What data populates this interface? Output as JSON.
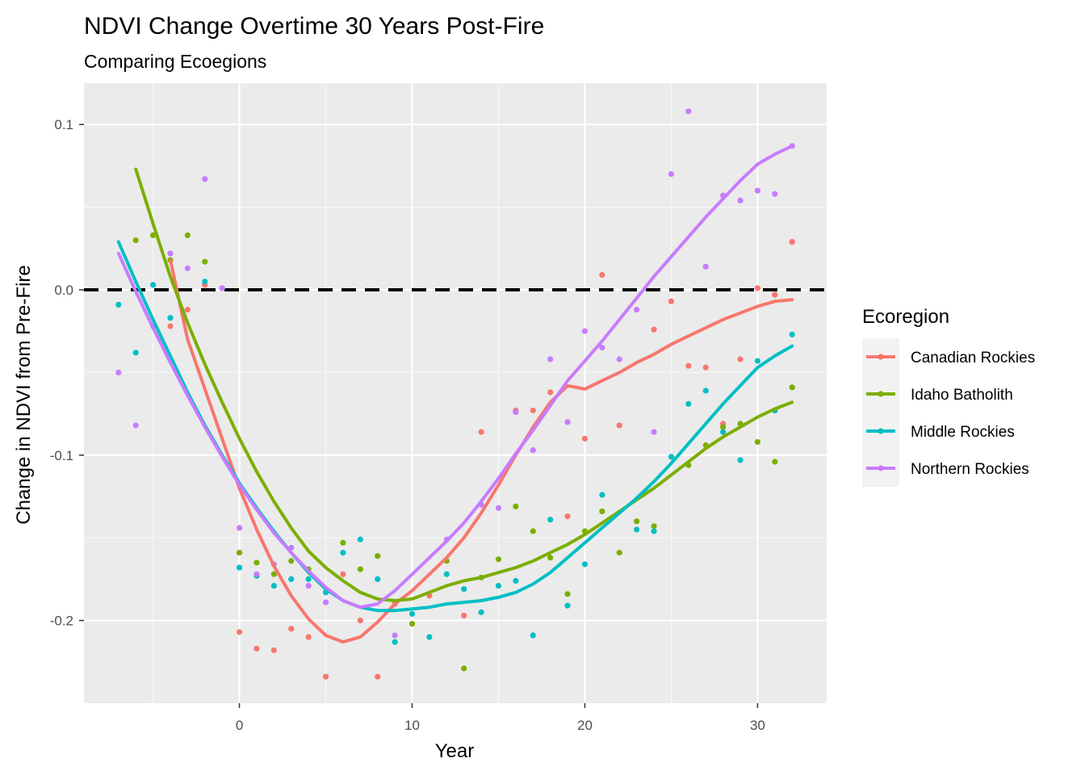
{
  "chart_data": {
    "type": "scatter",
    "title": "NDVI Change Overtime 30 Years Post-Fire",
    "subtitle": "Comparing Ecoegions",
    "xlabel": "Year",
    "ylabel": "Change in NDVI from Pre-Fire",
    "xlim": [
      -9,
      34
    ],
    "ylim": [
      -0.25,
      0.125
    ],
    "x_ticks": [
      0,
      10,
      20,
      30
    ],
    "x_tick_labels": [
      "0",
      "10",
      "20",
      "30"
    ],
    "y_ticks": [
      0.1,
      0.0,
      -0.1,
      -0.2
    ],
    "y_tick_labels": [
      "0.1",
      "0.0",
      "-0.1",
      "-0.2"
    ],
    "reference_line": {
      "y": 0.0,
      "style": "dashed",
      "color": "#000000"
    },
    "grid": true,
    "panel_background": "#ebebeb",
    "legend": {
      "title": "Ecoregion",
      "position": "right"
    },
    "series": [
      {
        "name": "Canadian Rockies",
        "color": "#F8766D",
        "points": [
          [
            -4,
            -0.022
          ],
          [
            -3,
            -0.012
          ],
          [
            -2,
            0.003
          ],
          [
            -1,
            0.001
          ],
          [
            0,
            -0.207
          ],
          [
            1,
            -0.217
          ],
          [
            2,
            -0.218
          ],
          [
            3,
            -0.205
          ],
          [
            4,
            -0.21
          ],
          [
            5,
            -0.234
          ],
          [
            6,
            -0.172
          ],
          [
            7,
            -0.2
          ],
          [
            8,
            -0.234
          ],
          [
            9,
            -0.19
          ],
          [
            11,
            -0.185
          ],
          [
            13,
            -0.197
          ],
          [
            14,
            -0.086
          ],
          [
            16,
            -0.073
          ],
          [
            17,
            -0.073
          ],
          [
            18,
            -0.062
          ],
          [
            19,
            -0.137
          ],
          [
            20,
            -0.09
          ],
          [
            21,
            0.009
          ],
          [
            22,
            -0.082
          ],
          [
            24,
            -0.024
          ],
          [
            25,
            -0.007
          ],
          [
            26,
            -0.046
          ],
          [
            27,
            -0.047
          ],
          [
            28,
            -0.081
          ],
          [
            29,
            -0.042
          ],
          [
            30,
            0.001
          ],
          [
            31,
            -0.003
          ],
          [
            32,
            0.029
          ]
        ],
        "smooth": [
          [
            -4,
            0.018
          ],
          [
            -3,
            -0.03
          ],
          [
            -2,
            -0.06
          ],
          [
            -1,
            -0.09
          ],
          [
            0,
            -0.12
          ],
          [
            1,
            -0.145
          ],
          [
            2,
            -0.167
          ],
          [
            3,
            -0.185
          ],
          [
            4,
            -0.199
          ],
          [
            5,
            -0.209
          ],
          [
            6,
            -0.213
          ],
          [
            7,
            -0.21
          ],
          [
            8,
            -0.201
          ],
          [
            9,
            -0.19
          ],
          [
            10,
            -0.182
          ],
          [
            11,
            -0.172
          ],
          [
            12,
            -0.162
          ],
          [
            13,
            -0.15
          ],
          [
            14,
            -0.135
          ],
          [
            15,
            -0.118
          ],
          [
            16,
            -0.1
          ],
          [
            17,
            -0.083
          ],
          [
            18,
            -0.068
          ],
          [
            19,
            -0.058
          ],
          [
            20,
            -0.06
          ],
          [
            21,
            -0.055
          ],
          [
            22,
            -0.05
          ],
          [
            23,
            -0.044
          ],
          [
            24,
            -0.039
          ],
          [
            25,
            -0.033
          ],
          [
            26,
            -0.028
          ],
          [
            27,
            -0.023
          ],
          [
            28,
            -0.018
          ],
          [
            29,
            -0.014
          ],
          [
            30,
            -0.01
          ],
          [
            31,
            -0.007
          ],
          [
            32,
            -0.006
          ]
        ]
      },
      {
        "name": "Idaho Batholith",
        "color": "#7CAE00",
        "points": [
          [
            -6,
            0.03
          ],
          [
            -5,
            0.033
          ],
          [
            -4,
            0.018
          ],
          [
            -3,
            0.033
          ],
          [
            -2,
            0.017
          ],
          [
            0,
            -0.159
          ],
          [
            1,
            -0.165
          ],
          [
            2,
            -0.172
          ],
          [
            3,
            -0.164
          ],
          [
            4,
            -0.169
          ],
          [
            6,
            -0.153
          ],
          [
            7,
            -0.169
          ],
          [
            8,
            -0.161
          ],
          [
            10,
            -0.202
          ],
          [
            12,
            -0.164
          ],
          [
            13,
            -0.229
          ],
          [
            14,
            -0.174
          ],
          [
            15,
            -0.163
          ],
          [
            16,
            -0.131
          ],
          [
            17,
            -0.146
          ],
          [
            18,
            -0.162
          ],
          [
            19,
            -0.184
          ],
          [
            20,
            -0.146
          ],
          [
            21,
            -0.134
          ],
          [
            22,
            -0.159
          ],
          [
            23,
            -0.14
          ],
          [
            24,
            -0.143
          ],
          [
            26,
            -0.106
          ],
          [
            27,
            -0.094
          ],
          [
            28,
            -0.083
          ],
          [
            29,
            -0.081
          ],
          [
            30,
            -0.092
          ],
          [
            31,
            -0.104
          ],
          [
            32,
            -0.059
          ]
        ],
        "smooth": [
          [
            -6,
            0.073
          ],
          [
            -5,
            0.04
          ],
          [
            -4,
            0.008
          ],
          [
            -3,
            -0.02
          ],
          [
            -2,
            -0.045
          ],
          [
            -1,
            -0.068
          ],
          [
            0,
            -0.09
          ],
          [
            1,
            -0.11
          ],
          [
            2,
            -0.128
          ],
          [
            3,
            -0.144
          ],
          [
            4,
            -0.158
          ],
          [
            5,
            -0.168
          ],
          [
            6,
            -0.176
          ],
          [
            7,
            -0.183
          ],
          [
            8,
            -0.187
          ],
          [
            9,
            -0.188
          ],
          [
            10,
            -0.187
          ],
          [
            11,
            -0.183
          ],
          [
            12,
            -0.179
          ],
          [
            13,
            -0.176
          ],
          [
            14,
            -0.174
          ],
          [
            15,
            -0.171
          ],
          [
            16,
            -0.168
          ],
          [
            17,
            -0.164
          ],
          [
            18,
            -0.159
          ],
          [
            19,
            -0.154
          ],
          [
            20,
            -0.148
          ],
          [
            21,
            -0.141
          ],
          [
            22,
            -0.134
          ],
          [
            23,
            -0.127
          ],
          [
            24,
            -0.12
          ],
          [
            25,
            -0.112
          ],
          [
            26,
            -0.104
          ],
          [
            27,
            -0.096
          ],
          [
            28,
            -0.089
          ],
          [
            29,
            -0.083
          ],
          [
            30,
            -0.077
          ],
          [
            31,
            -0.072
          ],
          [
            32,
            -0.068
          ]
        ]
      },
      {
        "name": "Middle Rockies",
        "color": "#00BFC4",
        "points": [
          [
            -7,
            -0.009
          ],
          [
            -6,
            -0.038
          ],
          [
            -5,
            0.003
          ],
          [
            -4,
            -0.017
          ],
          [
            -2,
            0.005
          ],
          [
            0,
            -0.168
          ],
          [
            1,
            -0.173
          ],
          [
            2,
            -0.179
          ],
          [
            3,
            -0.175
          ],
          [
            4,
            -0.175
          ],
          [
            5,
            -0.183
          ],
          [
            6,
            -0.159
          ],
          [
            7,
            -0.151
          ],
          [
            8,
            -0.175
          ],
          [
            9,
            -0.213
          ],
          [
            10,
            -0.196
          ],
          [
            11,
            -0.21
          ],
          [
            12,
            -0.172
          ],
          [
            13,
            -0.181
          ],
          [
            14,
            -0.195
          ],
          [
            15,
            -0.179
          ],
          [
            16,
            -0.176
          ],
          [
            17,
            -0.209
          ],
          [
            18,
            -0.139
          ],
          [
            19,
            -0.191
          ],
          [
            20,
            -0.166
          ],
          [
            21,
            -0.124
          ],
          [
            23,
            -0.145
          ],
          [
            24,
            -0.146
          ],
          [
            25,
            -0.101
          ],
          [
            26,
            -0.069
          ],
          [
            27,
            -0.061
          ],
          [
            28,
            -0.086
          ],
          [
            29,
            -0.103
          ],
          [
            30,
            -0.043
          ],
          [
            31,
            -0.073
          ],
          [
            32,
            -0.027
          ]
        ],
        "smooth": [
          [
            -7,
            0.029
          ],
          [
            -6,
            0.005
          ],
          [
            -5,
            -0.018
          ],
          [
            -4,
            -0.04
          ],
          [
            -3,
            -0.062
          ],
          [
            -2,
            -0.082
          ],
          [
            -1,
            -0.1
          ],
          [
            0,
            -0.117
          ],
          [
            1,
            -0.132
          ],
          [
            2,
            -0.146
          ],
          [
            3,
            -0.159
          ],
          [
            4,
            -0.171
          ],
          [
            5,
            -0.181
          ],
          [
            6,
            -0.188
          ],
          [
            7,
            -0.192
          ],
          [
            8,
            -0.194
          ],
          [
            9,
            -0.194
          ],
          [
            10,
            -0.193
          ],
          [
            11,
            -0.192
          ],
          [
            12,
            -0.19
          ],
          [
            13,
            -0.189
          ],
          [
            14,
            -0.188
          ],
          [
            15,
            -0.186
          ],
          [
            16,
            -0.183
          ],
          [
            17,
            -0.178
          ],
          [
            18,
            -0.171
          ],
          [
            19,
            -0.162
          ],
          [
            20,
            -0.153
          ],
          [
            21,
            -0.144
          ],
          [
            22,
            -0.135
          ],
          [
            23,
            -0.126
          ],
          [
            24,
            -0.116
          ],
          [
            25,
            -0.105
          ],
          [
            26,
            -0.093
          ],
          [
            27,
            -0.081
          ],
          [
            28,
            -0.069
          ],
          [
            29,
            -0.058
          ],
          [
            30,
            -0.047
          ],
          [
            31,
            -0.04
          ],
          [
            32,
            -0.034
          ]
        ]
      },
      {
        "name": "Northern Rockies",
        "color": "#C77CFF",
        "points": [
          [
            -7,
            -0.05
          ],
          [
            -6,
            -0.082
          ],
          [
            -5,
            -0.022
          ],
          [
            -4,
            0.022
          ],
          [
            -3,
            0.013
          ],
          [
            -2,
            0.067
          ],
          [
            -1,
            0.001
          ],
          [
            0,
            -0.144
          ],
          [
            1,
            -0.172
          ],
          [
            2,
            -0.166
          ],
          [
            3,
            -0.156
          ],
          [
            4,
            -0.179
          ],
          [
            5,
            -0.189
          ],
          [
            9,
            -0.209
          ],
          [
            12,
            -0.151
          ],
          [
            14,
            -0.13
          ],
          [
            15,
            -0.132
          ],
          [
            16,
            -0.074
          ],
          [
            17,
            -0.097
          ],
          [
            18,
            -0.042
          ],
          [
            19,
            -0.08
          ],
          [
            20,
            -0.025
          ],
          [
            21,
            -0.035
          ],
          [
            22,
            -0.042
          ],
          [
            23,
            -0.012
          ],
          [
            24,
            -0.086
          ],
          [
            25,
            0.07
          ],
          [
            26,
            0.108
          ],
          [
            27,
            0.014
          ],
          [
            28,
            0.057
          ],
          [
            29,
            0.054
          ],
          [
            30,
            0.06
          ],
          [
            31,
            0.058
          ],
          [
            32,
            0.087
          ]
        ],
        "smooth": [
          [
            -7,
            0.022
          ],
          [
            -6,
            -0.001
          ],
          [
            -5,
            -0.023
          ],
          [
            -4,
            -0.044
          ],
          [
            -3,
            -0.064
          ],
          [
            -2,
            -0.083
          ],
          [
            -1,
            -0.101
          ],
          [
            0,
            -0.118
          ],
          [
            1,
            -0.133
          ],
          [
            2,
            -0.147
          ],
          [
            3,
            -0.159
          ],
          [
            4,
            -0.17
          ],
          [
            5,
            -0.18
          ],
          [
            6,
            -0.188
          ],
          [
            7,
            -0.192
          ],
          [
            8,
            -0.19
          ],
          [
            9,
            -0.182
          ],
          [
            10,
            -0.172
          ],
          [
            11,
            -0.162
          ],
          [
            12,
            -0.152
          ],
          [
            13,
            -0.141
          ],
          [
            14,
            -0.128
          ],
          [
            15,
            -0.114
          ],
          [
            16,
            -0.099
          ],
          [
            17,
            -0.085
          ],
          [
            18,
            -0.07
          ],
          [
            19,
            -0.055
          ],
          [
            20,
            -0.043
          ],
          [
            21,
            -0.031
          ],
          [
            22,
            -0.018
          ],
          [
            23,
            -0.005
          ],
          [
            24,
            0.008
          ],
          [
            25,
            0.02
          ],
          [
            26,
            0.032
          ],
          [
            27,
            0.044
          ],
          [
            28,
            0.055
          ],
          [
            29,
            0.066
          ],
          [
            30,
            0.076
          ],
          [
            31,
            0.082
          ],
          [
            32,
            0.087
          ]
        ]
      }
    ]
  }
}
